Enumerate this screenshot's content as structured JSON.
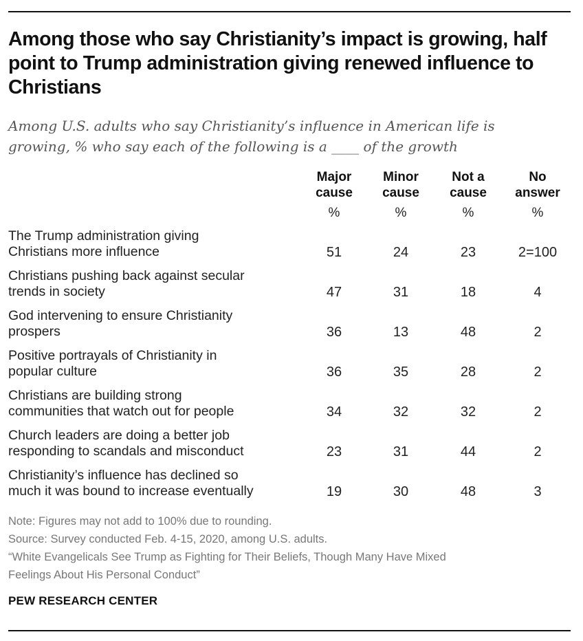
{
  "title": "Among those who say Christianity’s impact is growing, half point to Trump administration giving renewed influence to Christians",
  "subtitle": "Among U.S. adults who say Christianity’s influence in American life is growing, % who say each of the following is a ____ of the growth",
  "chart_data": {
    "type": "table",
    "columns": [
      {
        "line1": "Major",
        "line2": "cause",
        "unit": "%"
      },
      {
        "line1": "Minor",
        "line2": "cause",
        "unit": "%"
      },
      {
        "line1": "Not a",
        "line2": "cause",
        "unit": "%"
      },
      {
        "line1": "No",
        "line2": "answer",
        "unit": "%"
      }
    ],
    "rows": [
      {
        "line1": "The Trump administration giving",
        "line2": "Christians more influence",
        "values": [
          "51",
          "24",
          "23",
          "2=100"
        ]
      },
      {
        "line1": "Christians pushing back against secular",
        "line2": "trends in society",
        "values": [
          "47",
          "31",
          "18",
          "4"
        ]
      },
      {
        "line1": "God intervening to ensure Christianity",
        "line2": "prospers",
        "values": [
          "36",
          "13",
          "48",
          "2"
        ]
      },
      {
        "line1": "Positive portrayals of Christianity in",
        "line2": "popular culture",
        "values": [
          "36",
          "35",
          "28",
          "2"
        ]
      },
      {
        "line1": "Christians are building strong",
        "line2": "communities that watch out for people",
        "values": [
          "34",
          "32",
          "32",
          "2"
        ]
      },
      {
        "line1": "Church leaders are doing a better job",
        "line2": "responding to scandals and misconduct",
        "values": [
          "23",
          "31",
          "44",
          "2"
        ]
      },
      {
        "line1": "Christianity’s influence has declined so",
        "line2": "much it was bound to increase eventually",
        "values": [
          "19",
          "30",
          "48",
          "3"
        ]
      }
    ]
  },
  "notes": [
    "Note: Figures may not add to 100% due to rounding.",
    "Source: Survey conducted Feb. 4-15, 2020, among U.S. adults.",
    "“White Evangelicals See Trump as Fighting for Their Beliefs, Though Many Have Mixed",
    "Feelings About His Personal Conduct”"
  ],
  "brand": "PEW RESEARCH CENTER"
}
